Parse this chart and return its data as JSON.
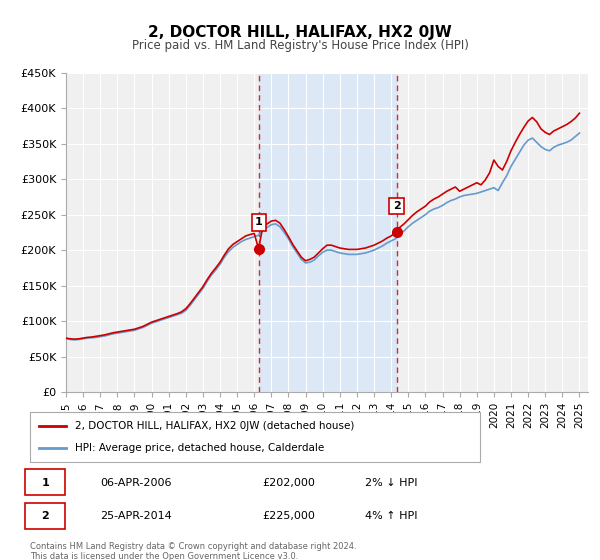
{
  "title": "2, DOCTOR HILL, HALIFAX, HX2 0JW",
  "subtitle": "Price paid vs. HM Land Registry's House Price Index (HPI)",
  "xlabel": "",
  "ylabel": "",
  "ylim": [
    0,
    450000
  ],
  "xlim": [
    1995.0,
    2025.5
  ],
  "yticks": [
    0,
    50000,
    100000,
    150000,
    200000,
    250000,
    300000,
    350000,
    400000,
    450000
  ],
  "ytick_labels": [
    "£0",
    "£50K",
    "£100K",
    "£150K",
    "£200K",
    "£250K",
    "£300K",
    "£350K",
    "£400K",
    "£450K"
  ],
  "xticks": [
    1995,
    1996,
    1997,
    1998,
    1999,
    2000,
    2001,
    2002,
    2003,
    2004,
    2005,
    2006,
    2007,
    2008,
    2009,
    2010,
    2011,
    2012,
    2013,
    2014,
    2015,
    2016,
    2017,
    2018,
    2019,
    2020,
    2021,
    2022,
    2023,
    2024,
    2025
  ],
  "background_color": "#ffffff",
  "plot_bg_color": "#f0f0f0",
  "grid_color": "#ffffff",
  "sale1_x": 2006.27,
  "sale1_y": 202000,
  "sale1_label": "1",
  "sale1_date": "06-APR-2006",
  "sale1_price": "£202,000",
  "sale1_hpi": "2% ↓ HPI",
  "sale2_x": 2014.32,
  "sale2_y": 225000,
  "sale2_label": "2",
  "sale2_date": "25-APR-2014",
  "sale2_price": "£225,000",
  "sale2_hpi": "4% ↑ HPI",
  "shade_start": 2006.27,
  "shade_end": 2014.32,
  "red_line_color": "#cc0000",
  "blue_line_color": "#6699cc",
  "marker_color": "#cc0000",
  "legend_label_red": "2, DOCTOR HILL, HALIFAX, HX2 0JW (detached house)",
  "legend_label_blue": "HPI: Average price, detached house, Calderdale",
  "footer_line1": "Contains HM Land Registry data © Crown copyright and database right 2024.",
  "footer_line2": "This data is licensed under the Open Government Licence v3.0.",
  "hpi_data": {
    "years": [
      1995.0,
      1995.25,
      1995.5,
      1995.75,
      1996.0,
      1996.25,
      1996.5,
      1996.75,
      1997.0,
      1997.25,
      1997.5,
      1997.75,
      1998.0,
      1998.25,
      1998.5,
      1998.75,
      1999.0,
      1999.25,
      1999.5,
      1999.75,
      2000.0,
      2000.25,
      2000.5,
      2000.75,
      2001.0,
      2001.25,
      2001.5,
      2001.75,
      2002.0,
      2002.25,
      2002.5,
      2002.75,
      2003.0,
      2003.25,
      2003.5,
      2003.75,
      2004.0,
      2004.25,
      2004.5,
      2004.75,
      2005.0,
      2005.25,
      2005.5,
      2005.75,
      2006.0,
      2006.25,
      2006.5,
      2006.75,
      2007.0,
      2007.25,
      2007.5,
      2007.75,
      2008.0,
      2008.25,
      2008.5,
      2008.75,
      2009.0,
      2009.25,
      2009.5,
      2009.75,
      2010.0,
      2010.25,
      2010.5,
      2010.75,
      2011.0,
      2011.25,
      2011.5,
      2011.75,
      2012.0,
      2012.25,
      2012.5,
      2012.75,
      2013.0,
      2013.25,
      2013.5,
      2013.75,
      2014.0,
      2014.25,
      2014.5,
      2014.75,
      2015.0,
      2015.25,
      2015.5,
      2015.75,
      2016.0,
      2016.25,
      2016.5,
      2016.75,
      2017.0,
      2017.25,
      2017.5,
      2017.75,
      2018.0,
      2018.25,
      2018.5,
      2018.75,
      2019.0,
      2019.25,
      2019.5,
      2019.75,
      2020.0,
      2020.25,
      2020.5,
      2020.75,
      2021.0,
      2021.25,
      2021.5,
      2021.75,
      2022.0,
      2022.25,
      2022.5,
      2022.75,
      2023.0,
      2023.25,
      2023.5,
      2023.75,
      2024.0,
      2024.25,
      2024.5,
      2024.75,
      2025.0
    ],
    "values": [
      75000,
      74000,
      73500,
      74000,
      75000,
      76000,
      76500,
      77000,
      78000,
      79000,
      80500,
      82000,
      83000,
      84000,
      85000,
      86000,
      87000,
      89000,
      91000,
      94000,
      97000,
      99000,
      101000,
      103000,
      105000,
      107000,
      109000,
      111000,
      115000,
      122000,
      130000,
      138000,
      146000,
      156000,
      165000,
      172000,
      180000,
      190000,
      198000,
      204000,
      208000,
      212000,
      215000,
      217000,
      219000,
      221000,
      228000,
      232000,
      236000,
      237000,
      233000,
      225000,
      216000,
      205000,
      196000,
      187000,
      182000,
      183000,
      186000,
      192000,
      197000,
      200000,
      200000,
      198000,
      196000,
      195000,
      194000,
      194000,
      194000,
      195000,
      196000,
      198000,
      200000,
      203000,
      206000,
      210000,
      213000,
      216000,
      222000,
      227000,
      233000,
      238000,
      242000,
      246000,
      250000,
      255000,
      258000,
      260000,
      263000,
      267000,
      270000,
      272000,
      275000,
      277000,
      278000,
      279000,
      280000,
      282000,
      284000,
      286000,
      288000,
      284000,
      295000,
      305000,
      318000,
      328000,
      338000,
      348000,
      355000,
      358000,
      352000,
      346000,
      342000,
      340000,
      345000,
      348000,
      350000,
      352000,
      355000,
      360000,
      365000
    ]
  },
  "red_data": {
    "years": [
      1995.0,
      1995.25,
      1995.5,
      1995.75,
      1996.0,
      1996.25,
      1996.5,
      1996.75,
      1997.0,
      1997.25,
      1997.5,
      1997.75,
      1998.0,
      1998.25,
      1998.5,
      1998.75,
      1999.0,
      1999.25,
      1999.5,
      1999.75,
      2000.0,
      2000.25,
      2000.5,
      2000.75,
      2001.0,
      2001.25,
      2001.5,
      2001.75,
      2002.0,
      2002.25,
      2002.5,
      2002.75,
      2003.0,
      2003.25,
      2003.5,
      2003.75,
      2004.0,
      2004.25,
      2004.5,
      2004.75,
      2005.0,
      2005.25,
      2005.5,
      2005.75,
      2006.0,
      2006.25,
      2006.5,
      2006.75,
      2007.0,
      2007.25,
      2007.5,
      2007.75,
      2008.0,
      2008.25,
      2008.5,
      2008.75,
      2009.0,
      2009.25,
      2009.5,
      2009.75,
      2010.0,
      2010.25,
      2010.5,
      2010.75,
      2011.0,
      2011.25,
      2011.5,
      2011.75,
      2012.0,
      2012.25,
      2012.5,
      2012.75,
      2013.0,
      2013.25,
      2013.5,
      2013.75,
      2014.0,
      2014.25,
      2014.5,
      2014.75,
      2015.0,
      2015.25,
      2015.5,
      2015.75,
      2016.0,
      2016.25,
      2016.5,
      2016.75,
      2017.0,
      2017.25,
      2017.5,
      2017.75,
      2018.0,
      2018.25,
      2018.5,
      2018.75,
      2019.0,
      2019.25,
      2019.5,
      2019.75,
      2020.0,
      2020.25,
      2020.5,
      2020.75,
      2021.0,
      2021.25,
      2021.5,
      2021.75,
      2022.0,
      2022.25,
      2022.5,
      2022.75,
      2023.0,
      2023.25,
      2023.5,
      2023.75,
      2024.0,
      2024.25,
      2024.5,
      2024.75,
      2025.0
    ],
    "values": [
      76000,
      75000,
      74500,
      75000,
      76000,
      77000,
      77500,
      78500,
      79500,
      80500,
      82000,
      83500,
      84500,
      85500,
      86500,
      87500,
      88500,
      90500,
      92500,
      95500,
      98500,
      100500,
      102500,
      104500,
      106500,
      108500,
      110500,
      113000,
      117500,
      124500,
      132500,
      140500,
      148500,
      158500,
      167500,
      175000,
      183000,
      193000,
      202000,
      208000,
      212000,
      216000,
      220000,
      222000,
      223500,
      202000,
      233000,
      237000,
      241000,
      242000,
      238000,
      229000,
      219000,
      208000,
      199000,
      190000,
      185000,
      187000,
      190000,
      196000,
      202000,
      207000,
      207000,
      205000,
      203000,
      202000,
      201000,
      201000,
      201000,
      202000,
      203000,
      205000,
      207000,
      210000,
      213000,
      217000,
      220000,
      225000,
      232000,
      237000,
      243000,
      249000,
      254000,
      258000,
      262000,
      268000,
      272000,
      275000,
      279000,
      283000,
      286000,
      289000,
      283000,
      286000,
      289000,
      292000,
      295000,
      292000,
      299000,
      309000,
      327000,
      318000,
      313000,
      325000,
      340000,
      352000,
      363000,
      373000,
      382000,
      387000,
      381000,
      371000,
      366000,
      363000,
      368000,
      371000,
      374000,
      377000,
      381000,
      386000,
      393000
    ]
  }
}
